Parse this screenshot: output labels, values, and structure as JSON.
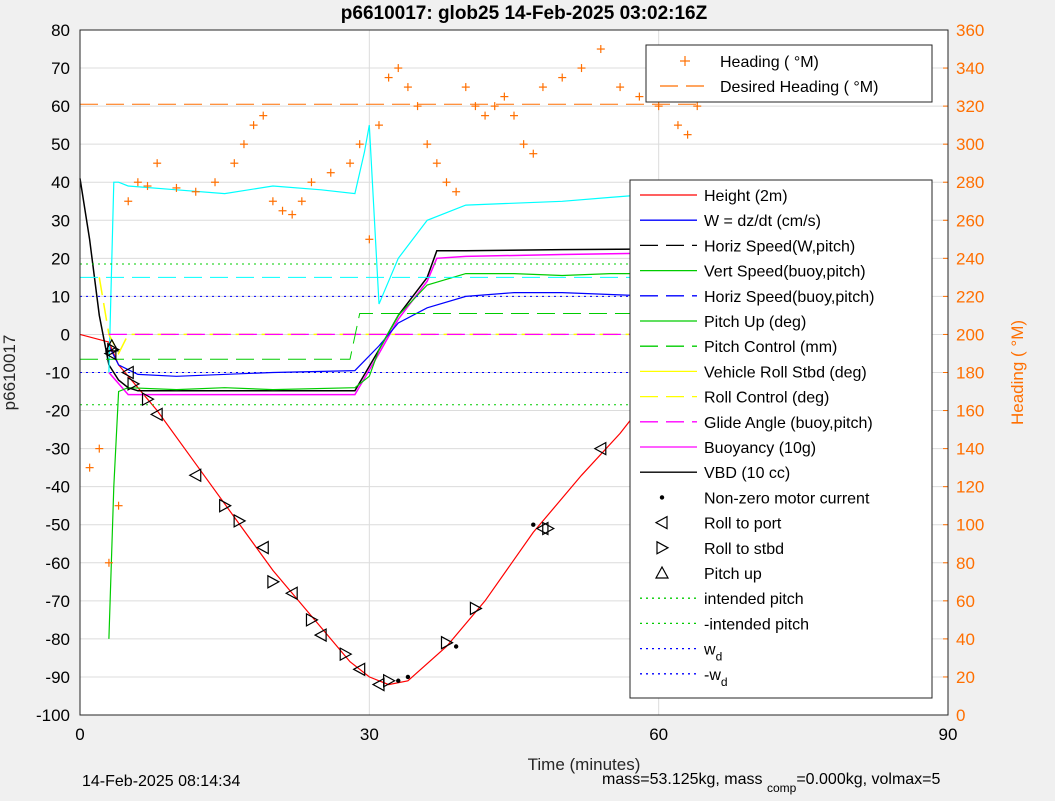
{
  "chart_data": {
    "type": "line",
    "title": "p6610017: glob25 14-Feb-2025 03:02:16Z",
    "xlabel": "Time (minutes)",
    "ylabel_left": "p6610017",
    "ylabel_right": "Heading (  °M)",
    "xlim": [
      0,
      90
    ],
    "ylim_left": [
      -100,
      80
    ],
    "ylim_right": [
      0,
      360
    ],
    "xticks": [
      "0",
      "30",
      "60",
      "90"
    ],
    "yticks_left": [
      "80",
      "70",
      "60",
      "50",
      "40",
      "30",
      "20",
      "10",
      "0",
      "-10",
      "-20",
      "-30",
      "-40",
      "-50",
      "-60",
      "-70",
      "-80",
      "-90",
      "-100"
    ],
    "yticks_right": [
      "360",
      "340",
      "320",
      "300",
      "280",
      "260",
      "240",
      "220",
      "200",
      "180",
      "160",
      "140",
      "120",
      "100",
      "80",
      "60",
      "40",
      "20",
      "0"
    ],
    "grid": true,
    "legend_top": {
      "placement": "top-right",
      "entries": [
        "Heading (  °M)",
        "Desired Heading (    °M)"
      ]
    },
    "legend_main": {
      "placement": "right",
      "entries": [
        "Height (2m)",
        "W = dz/dt (cm/s)",
        "Horiz Speed(W,pitch)",
        "Vert Speed(buoy,pitch)",
        "Horiz Speed(buoy,pitch)",
        "Pitch Up (deg)",
        "Pitch Control (mm)",
        "Vehicle Roll Stbd (deg)",
        "Roll Control (deg)",
        "Glide Angle (buoy,pitch)",
        "Buoyancy (10g)",
        "VBD (10 cc)",
        "Non-zero motor current",
        "Roll to port",
        "Roll to stbd",
        "Pitch up",
        "intended pitch",
        "-intended pitch",
        "w",
        "-w"
      ],
      "subscript": "d"
    },
    "series": [
      {
        "name": "Height (2m)",
        "color": "#ff0000",
        "x": [
          0,
          3,
          4,
          6,
          8,
          12,
          16,
          20,
          24,
          28,
          30,
          32,
          34,
          38,
          42,
          47,
          52,
          56,
          60,
          63,
          65
        ],
        "y": [
          0,
          -2,
          -8,
          -14,
          -20,
          -34,
          -48,
          -62,
          -74,
          -86,
          -90,
          -92,
          -91,
          -82,
          -70,
          -52,
          -37,
          -26,
          -13,
          -5,
          0
        ]
      },
      {
        "name": "VBD (10 cc)",
        "color": "#000000",
        "x": [
          0,
          1,
          2,
          3,
          4,
          5,
          6,
          10,
          20,
          28.5,
          31,
          33,
          36,
          37,
          40,
          50,
          63,
          64
        ],
        "y": [
          41,
          25,
          5,
          -8,
          -12,
          -14,
          -14.8,
          -14.8,
          -14.8,
          -14.8,
          -4,
          5,
          15,
          22,
          22,
          22.3,
          22.5,
          22
        ]
      },
      {
        "name": "Buoyancy (10g)",
        "color": "#ff00ff",
        "x": [
          3,
          5,
          10,
          20,
          28.5,
          31,
          33,
          36,
          37,
          40,
          50,
          63,
          64
        ],
        "y": [
          -10,
          -15.8,
          -15.8,
          -15.8,
          -15.8,
          -5,
          4,
          14,
          20,
          20.5,
          21,
          21.5,
          21
        ]
      },
      {
        "name": "W = dz/dt (cm/s)",
        "color": "#0000ff",
        "x": [
          3,
          4,
          6,
          10,
          20,
          28.5,
          31,
          33,
          36,
          40,
          45,
          50,
          55,
          60,
          63,
          64
        ],
        "y": [
          -3,
          -8,
          -10.5,
          -11,
          -10,
          -9.5,
          -3,
          3,
          7,
          10,
          11,
          11,
          10.5,
          10,
          10,
          9
        ]
      },
      {
        "name": "Pitch Up (deg)",
        "color": "#00cc00",
        "x": [
          3,
          3.5,
          4,
          5,
          10,
          15,
          20,
          28.5,
          29,
          30,
          31,
          33,
          36,
          40,
          45,
          50,
          55,
          60,
          63,
          64
        ],
        "y": [
          -80,
          -40,
          -15,
          -14,
          -14.5,
          -14,
          -14.5,
          -14,
          -13,
          -11,
          -4,
          5,
          13,
          16,
          16,
          15.5,
          16,
          16,
          16,
          17
        ]
      },
      {
        "name": "Vert Speed(buoy,pitch)",
        "color": "#00ffff",
        "x": [
          3,
          3.5,
          4,
          5,
          10,
          15,
          20,
          25,
          28.5,
          29.5,
          30,
          31,
          33,
          36,
          40,
          50,
          55,
          60,
          63,
          64
        ],
        "y": [
          -10,
          40,
          40,
          39,
          38,
          37,
          39,
          38,
          37,
          48,
          55,
          8,
          20,
          30,
          34,
          35,
          36,
          37,
          38,
          37
        ]
      },
      {
        "name": "Roll Control (deg)",
        "color": "#ffff00",
        "x": [
          2,
          3,
          4,
          5,
          10,
          15,
          20,
          25,
          30,
          35,
          40,
          45,
          50,
          55,
          60,
          63,
          64
        ],
        "y": [
          15,
          0,
          -5,
          0,
          0,
          0,
          0,
          0,
          0,
          0,
          0,
          0,
          0,
          0,
          0,
          0,
          0
        ]
      },
      {
        "name": "Glide Angle (buoy,pitch)",
        "color": "#ff00ff",
        "x": [
          3,
          64
        ],
        "y": [
          0,
          0
        ]
      },
      {
        "name": "intended pitch",
        "color": "#00cc00",
        "x": [
          0,
          64
        ],
        "y": [
          18.5,
          18.5
        ]
      },
      {
        "name": "-intended pitch",
        "color": "#00cc00",
        "x": [
          0,
          64
        ],
        "y": [
          -18.5,
          -18.5
        ]
      },
      {
        "name": "w_d",
        "color": "#0000ff",
        "x": [
          0,
          64
        ],
        "y": [
          10,
          10
        ]
      },
      {
        "name": "-w_d",
        "color": "#0000ff",
        "x": [
          0,
          64
        ],
        "y": [
          -10,
          -10
        ]
      },
      {
        "name": "Pitch Control (mm)",
        "color": "#00cc00",
        "x": [
          0,
          28,
          29,
          64
        ],
        "y": [
          -6.5,
          -6.5,
          5.5,
          5.5
        ]
      },
      {
        "name": "Horiz Speed(buoy,pitch)",
        "color": "#00ffff",
        "x": [
          0,
          28,
          29,
          64
        ],
        "y": [
          15,
          15,
          15,
          15
        ]
      },
      {
        "name": "Desired Heading (    °M)",
        "color": "#ff6f00",
        "axis": "right",
        "x": [
          0,
          64
        ],
        "y": [
          321,
          321
        ]
      },
      {
        "name": "Heading (  °M)",
        "color": "#ff6f00",
        "axis": "right",
        "x": [
          1,
          2,
          3,
          4,
          5,
          6,
          7,
          8,
          10,
          12,
          14,
          16,
          17,
          18,
          19,
          20,
          21,
          22,
          23,
          24,
          26,
          28,
          29,
          30,
          31,
          32,
          33,
          34,
          35,
          36,
          37,
          38,
          39,
          40,
          41,
          42,
          43,
          44,
          45,
          46,
          47,
          48,
          50,
          52,
          54,
          56,
          58,
          60,
          62,
          63,
          64
        ],
        "y": [
          130,
          140,
          80,
          110,
          270,
          280,
          278,
          290,
          277,
          275,
          280,
          290,
          300,
          310,
          315,
          270,
          265,
          263,
          270,
          280,
          285,
          290,
          300,
          250,
          310,
          335,
          340,
          330,
          320,
          300,
          290,
          280,
          275,
          330,
          320,
          315,
          320,
          325,
          315,
          300,
          295,
          330,
          335,
          340,
          350,
          330,
          325,
          320,
          310,
          305,
          320
        ]
      },
      {
        "name": "Non-zero motor current",
        "color": "#000000",
        "x": [
          59.5,
          47,
          39,
          33,
          34
        ],
        "y": [
          -13,
          -50,
          -82,
          -91,
          -90
        ]
      },
      {
        "name": "Roll to port",
        "color": "#000000",
        "x": [
          3.2,
          5,
          8,
          12,
          19,
          22,
          25,
          29,
          31,
          48,
          54,
          63
        ],
        "y": [
          -5,
          -10,
          -21,
          -37,
          -56,
          -68,
          -79,
          -88,
          -92,
          -51,
          -30,
          -5
        ]
      },
      {
        "name": "Roll to stbd",
        "color": "#000000",
        "x": [
          3.4,
          5.5,
          7,
          15,
          16.5,
          20,
          24,
          27.5,
          32,
          38,
          41,
          48.5,
          62.5
        ],
        "y": [
          -4,
          -13,
          -17,
          -45,
          -49,
          -65,
          -75,
          -84,
          -91,
          -81,
          -72,
          -51,
          -6
        ]
      },
      {
        "name": "Pitch up",
        "color": "#000000",
        "x": [
          3.3,
          64
        ],
        "y": [
          -3,
          0
        ]
      }
    ]
  },
  "footer": {
    "date": "14-Feb-2025 08:14:34",
    "mass_part1": "mass=53.125kg, mass",
    "mass_sub": "comp",
    "mass_part2": "=0.000kg, volmax=5"
  }
}
